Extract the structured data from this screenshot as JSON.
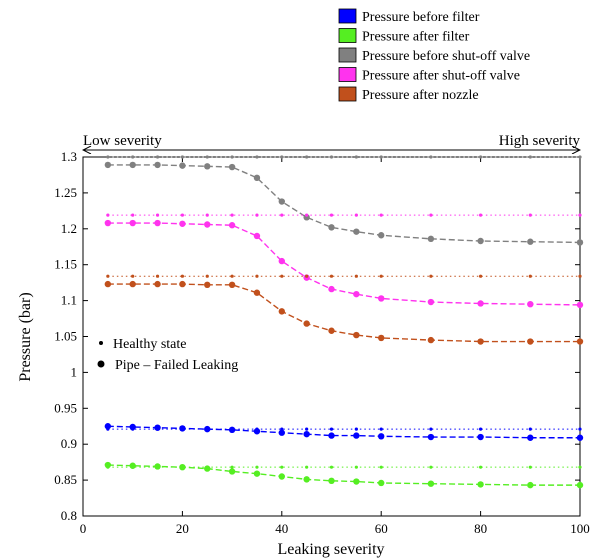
{
  "chart_data": {
    "type": "line",
    "xlabel": "Leaking severity",
    "ylabel": "Pressure (bar)",
    "xlim": [
      0,
      100
    ],
    "ylim": [
      0.8,
      1.3
    ],
    "xticks": [
      0,
      20,
      40,
      60,
      80,
      100
    ],
    "yticks": [
      0.8,
      0.85,
      0.9,
      0.95,
      1,
      1.05,
      1.1,
      1.15,
      1.2,
      1.25,
      1.3
    ],
    "grid": false,
    "severity_arrow": {
      "left_label": "Low severity",
      "right_label": "High severity"
    },
    "marker_legend": [
      {
        "marker": "small-dot",
        "label": "Healthy state"
      },
      {
        "marker": "large-dot",
        "label": "Pipe – Failed Leaking"
      }
    ],
    "legend_position": "top-right",
    "x": [
      5,
      10,
      15,
      20,
      25,
      30,
      35,
      40,
      45,
      50,
      55,
      60,
      70,
      80,
      90,
      100
    ],
    "series": [
      {
        "name": "Pressure before filter",
        "color": "#0000ff",
        "healthy": 0.921,
        "values": [
          0.925,
          0.924,
          0.923,
          0.922,
          0.921,
          0.92,
          0.918,
          0.916,
          0.914,
          0.912,
          0.912,
          0.911,
          0.91,
          0.91,
          0.909,
          0.909
        ]
      },
      {
        "name": "Pressure after filter",
        "color": "#55ee22",
        "healthy": 0.868,
        "values": [
          0.871,
          0.87,
          0.869,
          0.868,
          0.866,
          0.862,
          0.859,
          0.855,
          0.851,
          0.849,
          0.848,
          0.846,
          0.845,
          0.844,
          0.843,
          0.843
        ]
      },
      {
        "name": "Pressure before shut-off valve",
        "color": "#808080",
        "healthy": 1.3,
        "values": [
          1.289,
          1.289,
          1.289,
          1.288,
          1.287,
          1.286,
          1.271,
          1.238,
          1.216,
          1.202,
          1.196,
          1.191,
          1.186,
          1.183,
          1.182,
          1.181
        ]
      },
      {
        "name": "Pressure after shut-off valve",
        "color": "#ff33ee",
        "healthy": 1.219,
        "values": [
          1.208,
          1.208,
          1.208,
          1.207,
          1.206,
          1.205,
          1.19,
          1.155,
          1.132,
          1.116,
          1.109,
          1.103,
          1.098,
          1.096,
          1.095,
          1.094
        ]
      },
      {
        "name": "Pressure after nozzle",
        "color": "#c1501c",
        "healthy": 1.134,
        "values": [
          1.123,
          1.123,
          1.123,
          1.123,
          1.122,
          1.122,
          1.111,
          1.085,
          1.068,
          1.058,
          1.052,
          1.048,
          1.045,
          1.043,
          1.043,
          1.043
        ]
      }
    ]
  }
}
